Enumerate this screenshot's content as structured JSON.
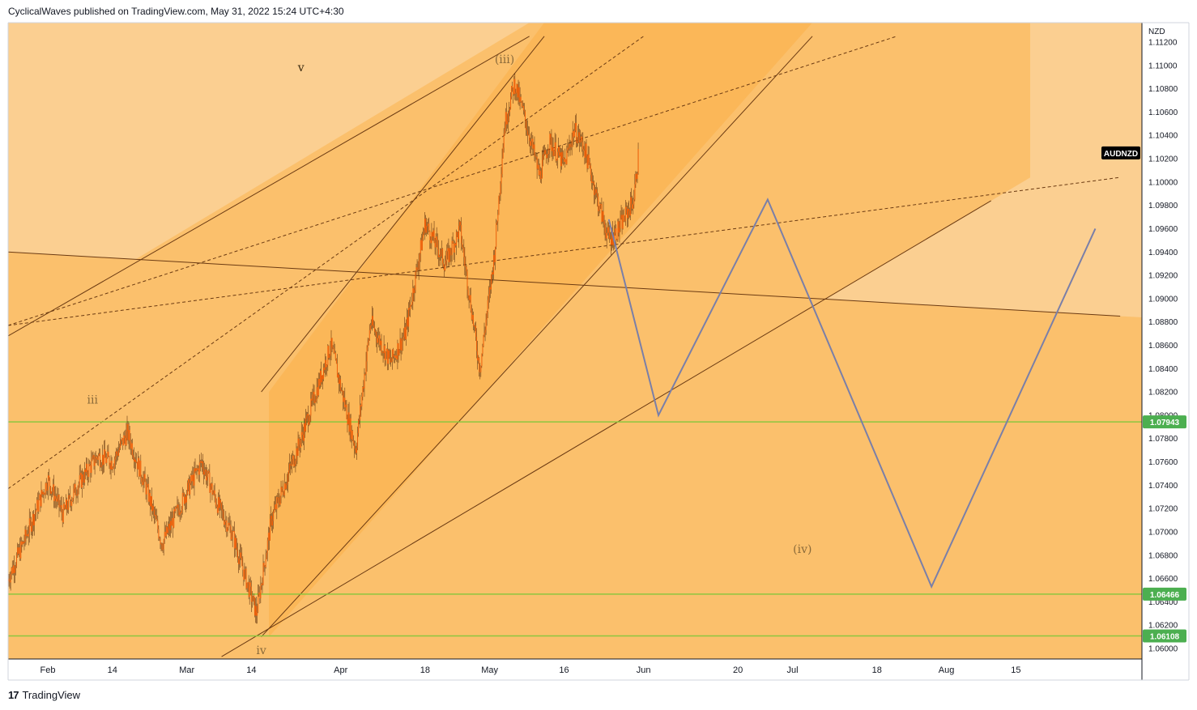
{
  "header": {
    "publisher_line": "CyclicalWaves published on TradingView.com, May 31, 2022 15:24 UTC+4:30"
  },
  "footer": {
    "brand": "TradingView",
    "logo_glyph": "17"
  },
  "colors": {
    "bg_light": "#fbcf91",
    "bg_mid": "#fbc06c",
    "bg_dark": "#fbaf48",
    "candle": "#f25c05",
    "wick": "#6b3a12",
    "green_level": "#8cc63f",
    "projection": "#7a7fa8",
    "wave_label": "#8a6a3a",
    "symbol_tag_bg": "#000000",
    "level_tag_bg": "#4caf50"
  },
  "chart_data": {
    "type": "candlestick",
    "symbol": "AUDNZD",
    "currency": "NZD",
    "y_axis": {
      "ticks": [
        "1.11200",
        "1.11000",
        "1.10800",
        "1.10600",
        "1.10400",
        "1.10200",
        "1.10000",
        "1.09800",
        "1.09600",
        "1.09400",
        "1.09200",
        "1.09000",
        "1.08800",
        "1.08600",
        "1.08400",
        "1.08200",
        "1.08000",
        "1.07800",
        "1.07600",
        "1.07400",
        "1.07200",
        "1.07000",
        "1.06800",
        "1.06600",
        "1.06400",
        "1.06200",
        "1.06000"
      ]
    },
    "x_axis": {
      "ticks": [
        "Feb",
        "14",
        "Mar",
        "14",
        "Apr",
        "18",
        "May",
        "16",
        "Jun",
        "20",
        "Jul",
        "18",
        "Aug",
        "15"
      ]
    },
    "horizontal_levels": [
      {
        "label": "1.07943",
        "value": 1.07943
      },
      {
        "label": "1.06466",
        "value": 1.06466
      },
      {
        "label": "1.06108",
        "value": 1.06108
      }
    ],
    "wave_labels": [
      {
        "text": "v",
        "date": "2022-03-24",
        "price": 1.1095
      },
      {
        "text": "(iii)",
        "date": "2022-05-04",
        "price": 1.1102
      },
      {
        "text": "iii",
        "date": "2022-02-10",
        "price": 1.081
      },
      {
        "text": "iv",
        "date": "2022-03-16",
        "price": 1.0595
      },
      {
        "text": "(iv)",
        "date": "2022-07-03",
        "price": 1.0682
      }
    ],
    "projection_path": [
      {
        "date": "2022-05-25",
        "price": 1.0968
      },
      {
        "date": "2022-06-04",
        "price": 1.08
      },
      {
        "date": "2022-06-26",
        "price": 1.0985
      },
      {
        "date": "2022-07-29",
        "price": 1.0653
      },
      {
        "date": "2022-08-31",
        "price": 1.096
      }
    ],
    "price_range": [
      1.06,
      1.1121
    ],
    "date_range": [
      "2022-01-24",
      "2022-09-05"
    ],
    "candles": {
      "interval": "4h",
      "keypoints": [
        {
          "date": "2022-01-24",
          "price": 1.066
        },
        {
          "date": "2022-01-27",
          "price": 1.069
        },
        {
          "date": "2022-02-01",
          "price": 1.0745
        },
        {
          "date": "2022-02-04",
          "price": 1.0715
        },
        {
          "date": "2022-02-07",
          "price": 1.074
        },
        {
          "date": "2022-02-11",
          "price": 1.0765
        },
        {
          "date": "2022-02-14",
          "price": 1.076
        },
        {
          "date": "2022-02-17",
          "price": 1.0785
        },
        {
          "date": "2022-02-21",
          "price": 1.0735
        },
        {
          "date": "2022-02-24",
          "price": 1.069
        },
        {
          "date": "2022-03-01",
          "price": 1.0735
        },
        {
          "date": "2022-03-04",
          "price": 1.076
        },
        {
          "date": "2022-03-07",
          "price": 1.0725
        },
        {
          "date": "2022-03-10",
          "price": 1.07
        },
        {
          "date": "2022-03-15",
          "price": 1.063
        },
        {
          "date": "2022-03-18",
          "price": 1.071
        },
        {
          "date": "2022-03-24",
          "price": 1.078
        },
        {
          "date": "2022-03-30",
          "price": 1.086
        },
        {
          "date": "2022-04-04",
          "price": 1.077
        },
        {
          "date": "2022-04-07",
          "price": 1.088
        },
        {
          "date": "2022-04-11",
          "price": 1.0845
        },
        {
          "date": "2022-04-14",
          "price": 1.087
        },
        {
          "date": "2022-04-18",
          "price": 1.0965
        },
        {
          "date": "2022-04-22",
          "price": 1.093
        },
        {
          "date": "2022-04-25",
          "price": 1.096
        },
        {
          "date": "2022-04-29",
          "price": 1.084
        },
        {
          "date": "2022-05-02",
          "price": 1.094
        },
        {
          "date": "2022-05-04",
          "price": 1.105
        },
        {
          "date": "2022-05-06",
          "price": 1.1085
        },
        {
          "date": "2022-05-09",
          "price": 1.104
        },
        {
          "date": "2022-05-11",
          "price": 1.1005
        },
        {
          "date": "2022-05-13",
          "price": 1.1035
        },
        {
          "date": "2022-05-16",
          "price": 1.1015
        },
        {
          "date": "2022-05-18",
          "price": 1.1045
        },
        {
          "date": "2022-05-20",
          "price": 1.103
        },
        {
          "date": "2022-05-23",
          "price": 1.098
        },
        {
          "date": "2022-05-25",
          "price": 1.095
        },
        {
          "date": "2022-05-27",
          "price": 1.096
        },
        {
          "date": "2022-05-30",
          "price": 1.0985
        },
        {
          "date": "2022-05-31",
          "price": 1.1025
        }
      ]
    },
    "trendlines": [
      {
        "style": "solid",
        "from": {
          "date": "2022-01-24",
          "price": 1.0868
        },
        "to": {
          "date": "2022-05-09",
          "price": 1.1125
        }
      },
      {
        "style": "solid",
        "from": {
          "date": "2022-03-16",
          "price": 1.082
        },
        "to": {
          "date": "2022-05-12",
          "price": 1.1125
        }
      },
      {
        "style": "solid",
        "from": {
          "date": "2022-03-16",
          "price": 1.061
        },
        "to": {
          "date": "2022-07-05",
          "price": 1.1125
        }
      },
      {
        "style": "solid",
        "from": {
          "date": "2022-03-08",
          "price": 1.0593
        },
        "to": {
          "date": "2022-08-10",
          "price": 1.0984
        }
      },
      {
        "style": "solid",
        "from": {
          "date": "2022-01-24",
          "price": 1.094
        },
        "to": {
          "date": "2022-09-05",
          "price": 1.0885
        }
      },
      {
        "style": "dashed",
        "from": {
          "date": "2022-01-24",
          "price": 1.0737
        },
        "to": {
          "date": "2022-06-01",
          "price": 1.1125
        }
      },
      {
        "style": "dashed",
        "from": {
          "date": "2022-01-24",
          "price": 1.0877
        },
        "to": {
          "date": "2022-07-22",
          "price": 1.1125
        }
      },
      {
        "style": "dashed",
        "from": {
          "date": "2022-01-24",
          "price": 1.0877
        },
        "to": {
          "date": "2022-09-05",
          "price": 1.1004
        }
      }
    ]
  }
}
